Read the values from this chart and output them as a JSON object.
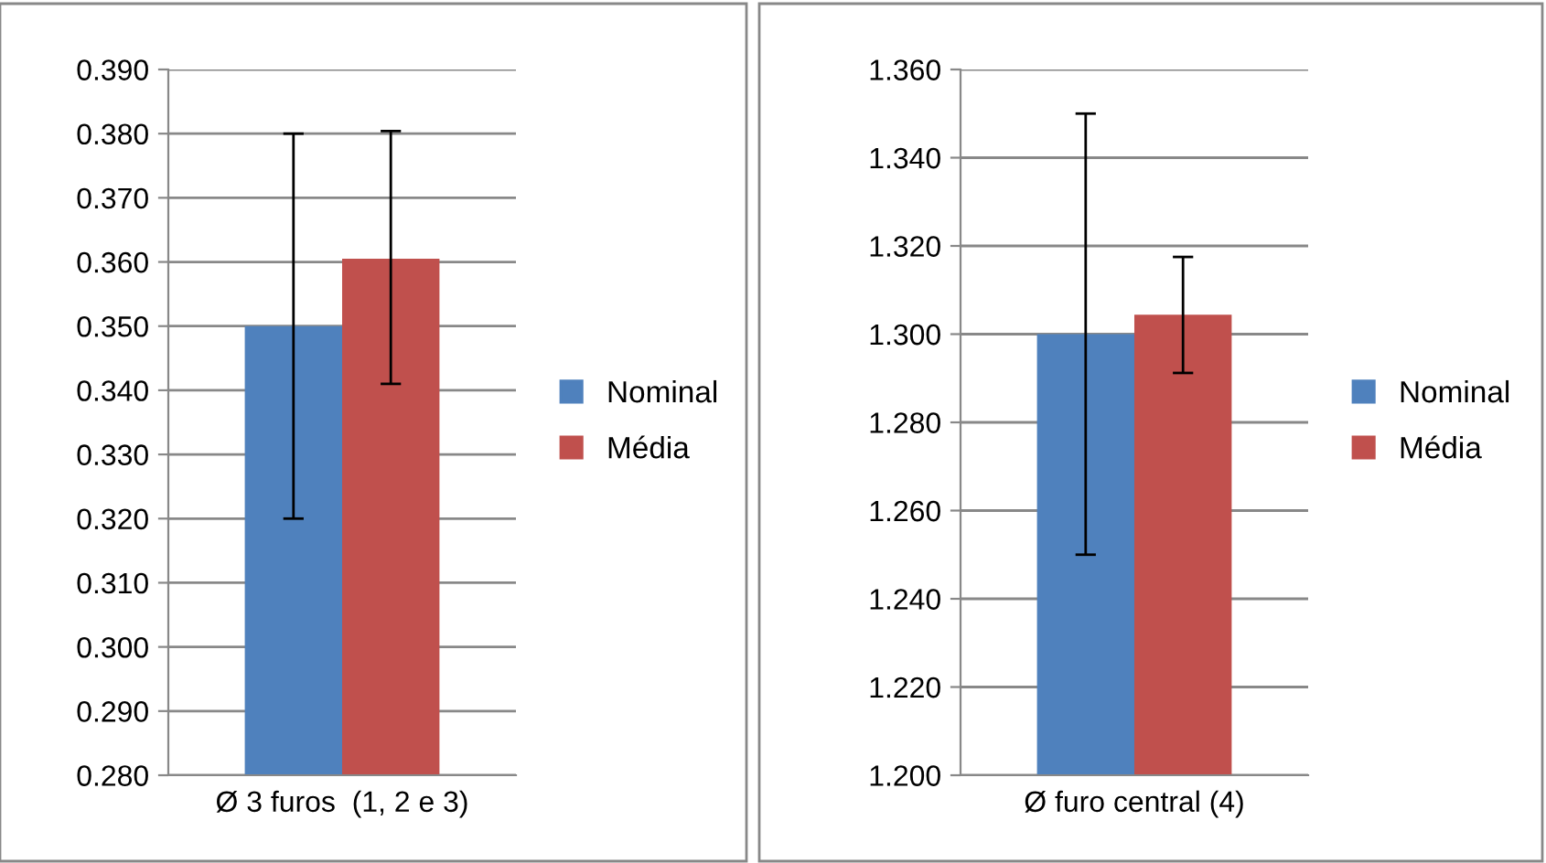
{
  "chart_data": [
    {
      "type": "bar",
      "categories": [
        "Ø 3 furos  (1, 2 e 3)"
      ],
      "ylim": [
        0.28,
        0.39
      ],
      "yticks": [
        {
          "value": 0.28,
          "label": "0.280"
        },
        {
          "value": 0.29,
          "label": "0.290"
        },
        {
          "value": 0.3,
          "label": "0.300"
        },
        {
          "value": 0.31,
          "label": "0.310"
        },
        {
          "value": 0.32,
          "label": "0.320"
        },
        {
          "value": 0.33,
          "label": "0.330"
        },
        {
          "value": 0.34,
          "label": "0.340"
        },
        {
          "value": 0.35,
          "label": "0.350"
        },
        {
          "value": 0.36,
          "label": "0.360"
        },
        {
          "value": 0.37,
          "label": "0.370"
        },
        {
          "value": 0.38,
          "label": "0.380"
        },
        {
          "value": 0.39,
          "label": "0.390"
        }
      ],
      "grid": "y",
      "legend": "right",
      "series": [
        {
          "name": "Nominal",
          "color": "#4f81bd",
          "values": [
            0.35
          ],
          "errors": [
            [
              0.32,
              0.38
            ]
          ]
        },
        {
          "name": "Média",
          "color": "#c0504d",
          "values": [
            0.3605
          ],
          "errors": [
            [
              0.341,
              0.3804
            ]
          ]
        }
      ]
    },
    {
      "type": "bar",
      "categories": [
        "Ø furo central (4)"
      ],
      "ylim": [
        1.2,
        1.36
      ],
      "yticks": [
        {
          "value": 1.2,
          "label": "1.200"
        },
        {
          "value": 1.22,
          "label": "1.220"
        },
        {
          "value": 1.24,
          "label": "1.240"
        },
        {
          "value": 1.26,
          "label": "1.260"
        },
        {
          "value": 1.28,
          "label": "1.280"
        },
        {
          "value": 1.3,
          "label": "1.300"
        },
        {
          "value": 1.32,
          "label": "1.320"
        },
        {
          "value": 1.34,
          "label": "1.340"
        },
        {
          "value": 1.36,
          "label": "1.360"
        }
      ],
      "grid": "y",
      "legend": "right",
      "series": [
        {
          "name": "Nominal",
          "color": "#4f81bd",
          "values": [
            1.3
          ],
          "errors": [
            [
              1.25,
              1.35
            ]
          ]
        },
        {
          "name": "Média",
          "color": "#c0504d",
          "values": [
            1.3044
          ],
          "errors": [
            [
              1.2912,
              1.3175
            ]
          ]
        }
      ]
    }
  ]
}
